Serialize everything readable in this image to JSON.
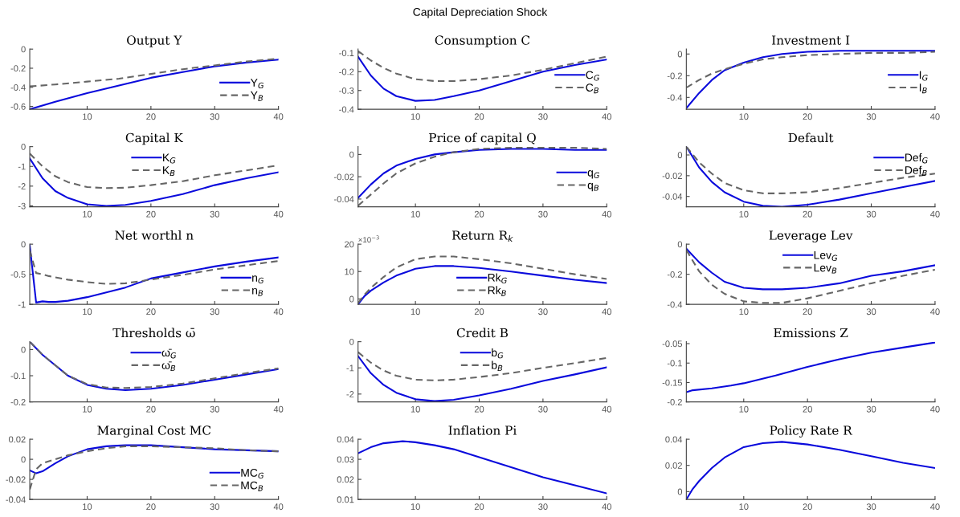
{
  "chart_data": [
    {
      "type": "other",
      "title": "Capital Depreciation Shock"
    },
    {
      "type": "line",
      "title": "Output Y",
      "x": [
        1,
        5,
        10,
        15,
        20,
        25,
        30,
        35,
        40
      ],
      "xlim": [
        1,
        40
      ],
      "xticks": [
        10,
        20,
        30,
        40
      ],
      "ylim": [
        -0.63,
        0
      ],
      "yticks": [
        -0.6,
        -0.4,
        -0.2,
        0
      ],
      "legend": "bottom right",
      "series": [
        {
          "name": "Y$_{G}$",
          "color": "#0a0adc",
          "line_style": "solid",
          "values": [
            -0.63,
            -0.55,
            -0.46,
            -0.38,
            -0.3,
            -0.24,
            -0.18,
            -0.14,
            -0.11
          ]
        },
        {
          "name": "Y$_{B}$",
          "color": "#666666",
          "line_style": "dashed",
          "values": [
            -0.39,
            -0.37,
            -0.34,
            -0.31,
            -0.26,
            -0.21,
            -0.17,
            -0.13,
            -0.1
          ]
        }
      ]
    },
    {
      "type": "line",
      "title": "Consumption C",
      "x": [
        1,
        3,
        5,
        7,
        10,
        13,
        16,
        20,
        25,
        30,
        35,
        40
      ],
      "xlim": [
        1,
        40
      ],
      "xticks": [
        10,
        20,
        30,
        40
      ],
      "ylim": [
        -0.4,
        -0.08
      ],
      "yticks": [
        -0.4,
        -0.3,
        -0.2,
        -0.1
      ],
      "legend": "right",
      "series": [
        {
          "name": "C$_{G}$",
          "color": "#0a0adc",
          "line_style": "solid",
          "values": [
            -0.12,
            -0.22,
            -0.29,
            -0.33,
            -0.355,
            -0.35,
            -0.33,
            -0.3,
            -0.25,
            -0.2,
            -0.165,
            -0.135
          ]
        },
        {
          "name": "C$_{B}$",
          "color": "#666666",
          "line_style": "dashed",
          "values": [
            -0.09,
            -0.14,
            -0.18,
            -0.21,
            -0.24,
            -0.25,
            -0.25,
            -0.24,
            -0.22,
            -0.19,
            -0.155,
            -0.12
          ]
        }
      ]
    },
    {
      "type": "line",
      "title": "Investment I",
      "x": [
        1,
        3,
        5,
        7,
        10,
        13,
        16,
        20,
        25,
        30,
        35,
        40
      ],
      "xlim": [
        1,
        40
      ],
      "xticks": [
        10,
        20,
        30,
        40
      ],
      "ylim": [
        -0.51,
        0.045
      ],
      "yticks": [
        -0.4,
        -0.2,
        0
      ],
      "legend": "right",
      "series": [
        {
          "name": "I$_{G}$",
          "color": "#0a0adc",
          "line_style": "solid",
          "values": [
            -0.5,
            -0.36,
            -0.24,
            -0.15,
            -0.08,
            -0.03,
            0.0,
            0.02,
            0.03,
            0.03,
            0.03,
            0.03
          ]
        },
        {
          "name": "I$_{B}$",
          "color": "#666666",
          "line_style": "dashed",
          "values": [
            -0.31,
            -0.24,
            -0.18,
            -0.14,
            -0.09,
            -0.05,
            -0.03,
            -0.01,
            0.0,
            0.01,
            0.01,
            0.02
          ]
        }
      ]
    },
    {
      "type": "line",
      "title": "Capital K",
      "x": [
        1,
        3,
        5,
        7,
        10,
        13,
        16,
        20,
        25,
        30,
        35,
        40
      ],
      "xlim": [
        1,
        40
      ],
      "xticks": [
        10,
        20,
        30,
        40
      ],
      "ylim": [
        -3.05,
        0
      ],
      "yticks": [
        -3,
        -2,
        -1,
        0
      ],
      "legend": "top",
      "series": [
        {
          "name": "K$_{G}$",
          "color": "#0a0adc",
          "line_style": "solid",
          "values": [
            -0.6,
            -1.6,
            -2.25,
            -2.6,
            -2.92,
            -3.0,
            -2.95,
            -2.75,
            -2.4,
            -1.95,
            -1.6,
            -1.3
          ]
        },
        {
          "name": "K$_{B}$",
          "color": "#666666",
          "line_style": "dashed",
          "values": [
            -0.35,
            -1.0,
            -1.5,
            -1.8,
            -2.05,
            -2.1,
            -2.08,
            -1.95,
            -1.75,
            -1.45,
            -1.2,
            -0.95
          ]
        }
      ]
    },
    {
      "type": "line",
      "title": "Price of capital Q",
      "x": [
        1,
        3,
        5,
        7,
        10,
        13,
        16,
        20,
        25,
        30,
        35,
        40
      ],
      "xlim": [
        1,
        40
      ],
      "xticks": [
        10,
        20,
        30,
        40
      ],
      "ylim": [
        -0.047,
        0.007
      ],
      "yticks": [
        -0.04,
        -0.02,
        0
      ],
      "legend": "right",
      "series": [
        {
          "name": "q$_{G}$",
          "color": "#0a0adc",
          "line_style": "solid",
          "values": [
            -0.039,
            -0.027,
            -0.017,
            -0.01,
            -0.004,
            0.0,
            0.002,
            0.004,
            0.005,
            0.005,
            0.004,
            0.004
          ]
        },
        {
          "name": "q$_{B}$",
          "color": "#666666",
          "line_style": "dashed",
          "values": [
            -0.046,
            -0.036,
            -0.026,
            -0.017,
            -0.008,
            -0.002,
            0.002,
            0.005,
            0.006,
            0.006,
            0.006,
            0.005
          ]
        }
      ]
    },
    {
      "type": "line",
      "title": "Default",
      "x": [
        1,
        3,
        5,
        7,
        10,
        13,
        16,
        20,
        25,
        30,
        35,
        40
      ],
      "xlim": [
        1,
        40
      ],
      "xticks": [
        10,
        20,
        30,
        40
      ],
      "ylim": [
        -0.05,
        0.008
      ],
      "yticks": [
        -0.04,
        -0.02,
        0
      ],
      "legend": "top right",
      "series": [
        {
          "name": "Def$_{G}$",
          "color": "#0a0adc",
          "line_style": "solid",
          "values": [
            0.008,
            -0.012,
            -0.026,
            -0.036,
            -0.045,
            -0.049,
            -0.05,
            -0.048,
            -0.043,
            -0.037,
            -0.031,
            -0.025
          ]
        },
        {
          "name": "Def$_{B}$",
          "color": "#666666",
          "line_style": "dashed",
          "values": [
            0.008,
            -0.007,
            -0.018,
            -0.027,
            -0.034,
            -0.037,
            -0.037,
            -0.036,
            -0.032,
            -0.027,
            -0.022,
            -0.018
          ]
        }
      ]
    },
    {
      "type": "line",
      "title": "Net worthl n",
      "x": [
        1,
        2,
        3,
        4,
        5,
        7,
        10,
        13,
        16,
        20,
        25,
        30,
        35,
        40
      ],
      "xlim": [
        1,
        40
      ],
      "xticks": [
        10,
        20,
        30,
        40
      ],
      "ylim": [
        -1,
        0
      ],
      "yticks": [
        -1,
        -0.5,
        0
      ],
      "legend": "bottom right",
      "series": [
        {
          "name": "n$_{G}$",
          "color": "#0a0adc",
          "line_style": "solid",
          "values": [
            -0.02,
            -0.97,
            -0.95,
            -0.96,
            -0.96,
            -0.94,
            -0.88,
            -0.8,
            -0.72,
            -0.57,
            -0.47,
            -0.37,
            -0.29,
            -0.22
          ]
        },
        {
          "name": "n$_{B}$",
          "color": "#666666",
          "line_style": "dashed",
          "values": [
            -0.1,
            -0.48,
            -0.5,
            -0.53,
            -0.55,
            -0.59,
            -0.63,
            -0.66,
            -0.65,
            -0.59,
            -0.51,
            -0.42,
            -0.35,
            -0.28
          ]
        }
      ]
    },
    {
      "type": "line",
      "title": "Return R$_{k}$",
      "x": [
        1,
        2,
        3,
        5,
        7,
        10,
        13,
        16,
        20,
        25,
        30,
        35,
        40
      ],
      "xlim": [
        1,
        40
      ],
      "xticks": [
        10,
        20,
        30,
        40
      ],
      "ylim": [
        -2,
        20
      ],
      "yticks": [
        0,
        10,
        20
      ],
      "legend": "bottom",
      "annotations": [
        "×10$^{−3}$"
      ],
      "series": [
        {
          "name": "Rk$_{G}$",
          "color": "#0a0adc",
          "line_style": "solid",
          "values": [
            -2,
            1,
            3,
            6,
            8.5,
            11,
            12,
            12,
            11.3,
            10,
            8.5,
            7,
            5.8
          ]
        },
        {
          "name": "Rk$_{B}$",
          "color": "#666666",
          "line_style": "dashed",
          "values": [
            -1.5,
            1.5,
            4,
            8,
            11.5,
            14.5,
            15.5,
            15.5,
            14.5,
            13,
            11,
            9,
            7.3
          ]
        }
      ]
    },
    {
      "type": "line",
      "title": "Leverage Lev",
      "x": [
        1,
        3,
        5,
        7,
        10,
        13,
        16,
        20,
        25,
        30,
        35,
        40
      ],
      "xlim": [
        1,
        40
      ],
      "xticks": [
        10,
        20,
        30,
        40
      ],
      "ylim": [
        -0.4,
        0
      ],
      "yticks": [
        -0.4,
        -0.2,
        0
      ],
      "legend": "top",
      "series": [
        {
          "name": "Lev$_{G}$",
          "color": "#0a0adc",
          "line_style": "solid",
          "values": [
            -0.03,
            -0.12,
            -0.19,
            -0.25,
            -0.29,
            -0.3,
            -0.3,
            -0.29,
            -0.26,
            -0.21,
            -0.18,
            -0.14
          ]
        },
        {
          "name": "Lev$_{B}$",
          "color": "#666666",
          "line_style": "dashed",
          "values": [
            -0.04,
            -0.18,
            -0.27,
            -0.33,
            -0.38,
            -0.39,
            -0.39,
            -0.36,
            -0.31,
            -0.26,
            -0.21,
            -0.17
          ]
        }
      ]
    },
    {
      "type": "line",
      "title": "Thresholds ω̄",
      "x": [
        1,
        3,
        5,
        7,
        10,
        13,
        16,
        20,
        25,
        30,
        35,
        40
      ],
      "xlim": [
        1,
        40
      ],
      "xticks": [
        10,
        20,
        30,
        40
      ],
      "ylim": [
        -0.2,
        0.03
      ],
      "yticks": [
        -0.2,
        -0.1,
        0
      ],
      "legend": "top",
      "series": [
        {
          "name": "ω̄$_{G}$",
          "color": "#0a0adc",
          "line_style": "solid",
          "values": [
            0.03,
            -0.02,
            -0.06,
            -0.1,
            -0.135,
            -0.15,
            -0.155,
            -0.15,
            -0.135,
            -0.115,
            -0.095,
            -0.075
          ]
        },
        {
          "name": "ω̄$_{B}$",
          "color": "#666666",
          "line_style": "dashed",
          "values": [
            0.03,
            -0.02,
            -0.06,
            -0.1,
            -0.132,
            -0.145,
            -0.147,
            -0.143,
            -0.13,
            -0.11,
            -0.09,
            -0.072
          ]
        }
      ]
    },
    {
      "type": "line",
      "title": "Credit B",
      "x": [
        1,
        3,
        5,
        7,
        10,
        13,
        16,
        20,
        25,
        30,
        35,
        40
      ],
      "xlim": [
        1,
        40
      ],
      "xticks": [
        10,
        20,
        30,
        40
      ],
      "ylim": [
        -2.3,
        0
      ],
      "yticks": [
        -2,
        -1,
        0
      ],
      "legend": "top",
      "series": [
        {
          "name": "b$_{G}$",
          "color": "#0a0adc",
          "line_style": "solid",
          "values": [
            -0.55,
            -1.2,
            -1.65,
            -1.95,
            -2.2,
            -2.27,
            -2.22,
            -2.05,
            -1.8,
            -1.5,
            -1.25,
            -0.98
          ]
        },
        {
          "name": "b$_{B}$",
          "color": "#666666",
          "line_style": "dashed",
          "values": [
            -0.4,
            -0.8,
            -1.1,
            -1.3,
            -1.45,
            -1.48,
            -1.45,
            -1.35,
            -1.2,
            -1.0,
            -0.82,
            -0.62
          ]
        }
      ]
    },
    {
      "type": "line",
      "title": "Emissions Z",
      "x": [
        1,
        2,
        5,
        8,
        10,
        15,
        20,
        25,
        30,
        35,
        40
      ],
      "xlim": [
        1,
        40
      ],
      "xticks": [
        10,
        20,
        30,
        40
      ],
      "ylim": [
        -0.2,
        -0.045
      ],
      "yticks": [
        -0.2,
        -0.15,
        -0.1,
        -0.05
      ],
      "series": [
        {
          "color": "#0a0adc",
          "line_style": "solid",
          "values": [
            -0.175,
            -0.17,
            -0.165,
            -0.158,
            -0.152,
            -0.132,
            -0.11,
            -0.09,
            -0.073,
            -0.06,
            -0.047
          ]
        }
      ]
    },
    {
      "type": "line",
      "title": "Marginal Cost MC",
      "x": [
        1,
        2,
        3,
        5,
        7,
        10,
        13,
        16,
        20,
        25,
        30,
        35,
        40
      ],
      "xlim": [
        1,
        40
      ],
      "xticks": [
        10,
        20,
        30,
        40
      ],
      "ylim": [
        -0.04,
        0.02
      ],
      "yticks": [
        -0.04,
        -0.02,
        0,
        0.02
      ],
      "legend": "bottom right",
      "series": [
        {
          "name": "MC$_{G}$",
          "color": "#0a0adc",
          "line_style": "solid",
          "values": [
            -0.011,
            -0.014,
            -0.012,
            -0.004,
            0.003,
            0.01,
            0.013,
            0.014,
            0.014,
            0.012,
            0.01,
            0.009,
            0.008
          ]
        },
        {
          "name": "MC$_{B}$",
          "color": "#666666",
          "line_style": "dashed",
          "values": [
            -0.03,
            -0.01,
            -0.004,
            0.0,
            0.004,
            0.008,
            0.011,
            0.013,
            0.013,
            0.012,
            0.011,
            0.009,
            0.008
          ]
        }
      ]
    },
    {
      "type": "line",
      "title": "Inflation Pi",
      "x": [
        1,
        3,
        5,
        8,
        10,
        13,
        16,
        20,
        25,
        30,
        35,
        40
      ],
      "xlim": [
        1,
        40
      ],
      "xticks": [
        10,
        20,
        30,
        40
      ],
      "ylim": [
        0.01,
        0.04
      ],
      "yticks": [
        0.01,
        0.02,
        0.03,
        0.04
      ],
      "series": [
        {
          "color": "#0a0adc",
          "line_style": "solid",
          "values": [
            0.033,
            0.036,
            0.038,
            0.039,
            0.0385,
            0.037,
            0.035,
            0.031,
            0.026,
            0.021,
            0.017,
            0.013
          ]
        }
      ]
    },
    {
      "type": "line",
      "title": "Policy Rate R",
      "x": [
        1,
        2,
        3,
        5,
        7,
        10,
        13,
        16,
        20,
        25,
        30,
        35,
        40
      ],
      "xlim": [
        1,
        40
      ],
      "xticks": [
        10,
        20,
        30,
        40
      ],
      "ylim": [
        -0.006,
        0.04
      ],
      "yticks": [
        0,
        0.02,
        0.04
      ],
      "series": [
        {
          "color": "#0a0adc",
          "line_style": "solid",
          "values": [
            -0.006,
            0.002,
            0.008,
            0.018,
            0.026,
            0.034,
            0.037,
            0.038,
            0.036,
            0.032,
            0.027,
            0.022,
            0.018
          ]
        }
      ]
    }
  ]
}
